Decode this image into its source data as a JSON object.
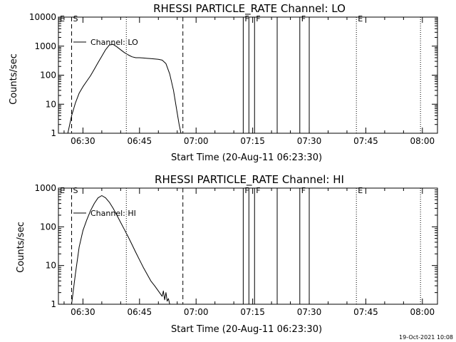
{
  "chart_data": [
    {
      "type": "line",
      "title": "RHESSI PARTICLE_RATE Channel: LO",
      "xlabel": "Start Time (20-Aug-11 06:23:30)",
      "ylabel": "Counts/sec",
      "yscale": "log",
      "ylim": [
        1,
        10000
      ],
      "xlim": [
        "06:23:30",
        "08:04:00"
      ],
      "x_ticks": [
        "06:30",
        "06:45",
        "07:00",
        "07:15",
        "07:30",
        "07:45",
        "08:00"
      ],
      "y_ticks": [
        "1",
        "10",
        "100",
        "1000",
        "10000"
      ],
      "grid": false,
      "legend_position": "top-left",
      "series": [
        {
          "name": "Channel: LO",
          "x": [
            "06:26:00",
            "06:27:00",
            "06:28:00",
            "06:29:00",
            "06:30:00",
            "06:31:00",
            "06:32:00",
            "06:33:00",
            "06:34:00",
            "06:35:00",
            "06:36:00",
            "06:37:00",
            "06:38:00",
            "06:39:00",
            "06:40:00",
            "06:41:00",
            "06:42:00",
            "06:43:00",
            "06:44:00",
            "06:45:00",
            "06:46:00",
            "06:47:00",
            "06:48:00",
            "06:49:00",
            "06:50:00",
            "06:51:00",
            "06:52:00",
            "06:53:00",
            "06:54:00",
            "06:55:00",
            "06:55:30",
            "06:56:00"
          ],
          "y": [
            1,
            4,
            11,
            24,
            40,
            62,
            95,
            160,
            270,
            450,
            750,
            1100,
            1150,
            950,
            750,
            600,
            500,
            430,
            400,
            400,
            390,
            380,
            370,
            360,
            350,
            330,
            250,
            110,
            30,
            5,
            2,
            1
          ]
        }
      ]
    },
    {
      "type": "line",
      "title": "RHESSI PARTICLE_RATE Channel: HI",
      "xlabel": "Start Time (20-Aug-11 06:23:30)",
      "ylabel": "Counts/sec",
      "yscale": "log",
      "ylim": [
        1,
        1000
      ],
      "xlim": [
        "06:23:30",
        "08:04:00"
      ],
      "x_ticks": [
        "06:30",
        "06:45",
        "07:00",
        "07:15",
        "07:30",
        "07:45",
        "08:00"
      ],
      "y_ticks": [
        "1",
        "10",
        "100",
        "1000"
      ],
      "grid": false,
      "legend_position": "top-left",
      "series": [
        {
          "name": "Channel: HI",
          "x": [
            "06:27:00",
            "06:28:00",
            "06:29:00",
            "06:30:00",
            "06:31:00",
            "06:32:00",
            "06:33:00",
            "06:34:00",
            "06:35:00",
            "06:36:00",
            "06:37:00",
            "06:38:00",
            "06:39:00",
            "06:40:00",
            "06:41:00",
            "06:42:00",
            "06:43:00",
            "06:44:00",
            "06:45:00",
            "06:46:00",
            "06:47:00",
            "06:48:00",
            "06:49:00",
            "06:50:00",
            "06:51:00",
            "06:51:20",
            "06:51:40",
            "06:52:00",
            "06:52:20",
            "06:52:40",
            "06:53:00"
          ],
          "y": [
            1,
            6,
            30,
            80,
            150,
            260,
            400,
            560,
            640,
            560,
            430,
            300,
            200,
            130,
            85,
            55,
            35,
            22,
            14,
            9,
            6,
            4,
            3,
            2.2,
            1.6,
            2.2,
            1.3,
            2.0,
            1.2,
            1.4,
            1
          ]
        }
      ]
    }
  ],
  "flags": [
    {
      "label": "E",
      "time": "06:23:30",
      "style": "none"
    },
    {
      "label": "S",
      "time": "06:27:00",
      "style": "dashed"
    },
    {
      "label": "",
      "time": "06:41:30",
      "style": "dotted"
    },
    {
      "label": "",
      "time": "06:56:30",
      "style": "dashed"
    },
    {
      "label": "F",
      "time": "07:12:30",
      "style": "solid"
    },
    {
      "label": "",
      "time": "07:14:00",
      "style": "solid"
    },
    {
      "label": "F",
      "time": "07:15:30",
      "style": "solid"
    },
    {
      "label": "",
      "time": "07:21:30",
      "style": "solid"
    },
    {
      "label": "F",
      "time": "07:27:30",
      "style": "solid"
    },
    {
      "label": "",
      "time": "07:30:00",
      "style": "solid"
    },
    {
      "label": "E",
      "time": "07:42:30",
      "style": "dotted"
    },
    {
      "label": "",
      "time": "07:59:30",
      "style": "dotted"
    }
  ],
  "timestamp": "19-Oct-2021 10:08"
}
